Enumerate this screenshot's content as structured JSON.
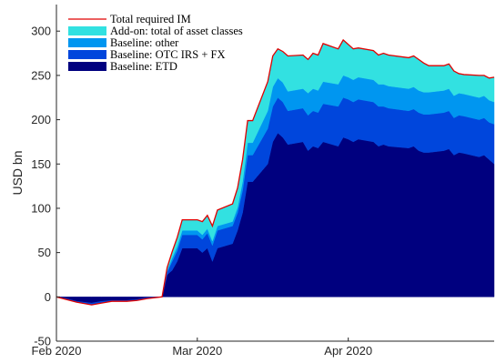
{
  "chart_data": {
    "type": "area",
    "title": "",
    "xlabel": "",
    "ylabel": "USD bn",
    "ylim": [
      -50,
      330
    ],
    "xlim": [
      "2020-02-03",
      "2020-04-30"
    ],
    "yticks": [
      -50,
      0,
      50,
      100,
      150,
      200,
      250,
      300
    ],
    "xticks": [
      {
        "date": "2020-02-03",
        "label": "Feb 2020"
      },
      {
        "date": "2020-03-02",
        "label": "Mar 2020"
      },
      {
        "date": "2020-04-01",
        "label": "Apr 2020"
      }
    ],
    "grid": false,
    "legend_position": "top-left",
    "x": [
      "2020-02-03",
      "2020-02-05",
      "2020-02-07",
      "2020-02-10",
      "2020-02-12",
      "2020-02-14",
      "2020-02-17",
      "2020-02-19",
      "2020-02-21",
      "2020-02-24",
      "2020-02-25",
      "2020-02-26",
      "2020-02-27",
      "2020-02-28",
      "2020-03-02",
      "2020-03-03",
      "2020-03-04",
      "2020-03-05",
      "2020-03-06",
      "2020-03-09",
      "2020-03-10",
      "2020-03-11",
      "2020-03-12",
      "2020-03-13",
      "2020-03-16",
      "2020-03-17",
      "2020-03-18",
      "2020-03-19",
      "2020-03-20",
      "2020-03-23",
      "2020-03-24",
      "2020-03-25",
      "2020-03-26",
      "2020-03-27",
      "2020-03-30",
      "2020-03-31",
      "2020-04-01",
      "2020-04-02",
      "2020-04-03",
      "2020-04-06",
      "2020-04-07",
      "2020-04-08",
      "2020-04-09",
      "2020-04-13",
      "2020-04-14",
      "2020-04-15",
      "2020-04-16",
      "2020-04-17",
      "2020-04-20",
      "2020-04-21",
      "2020-04-22",
      "2020-04-23",
      "2020-04-24",
      "2020-04-27",
      "2020-04-28",
      "2020-04-29",
      "2020-04-30"
    ],
    "series": [
      {
        "name": "Baseline: ETD",
        "color": "#00007f",
        "values": [
          0,
          -2,
          -5,
          -7,
          -5,
          -4,
          -4,
          -3,
          -1,
          0,
          25,
          30,
          40,
          55,
          55,
          50,
          55,
          40,
          55,
          60,
          75,
          95,
          130,
          130,
          150,
          175,
          185,
          180,
          172,
          175,
          165,
          170,
          168,
          175,
          170,
          180,
          178,
          175,
          178,
          175,
          170,
          172,
          170,
          168,
          170,
          165,
          163,
          163,
          165,
          167,
          160,
          163,
          162,
          158,
          160,
          155,
          150
        ]
      },
      {
        "name": "Baseline: OTC IRS + FX",
        "color": "#0046dc",
        "values": [
          0,
          -1,
          -1,
          -2,
          -2,
          -1,
          -1,
          -1,
          -1,
          0,
          3,
          10,
          12,
          15,
          15,
          15,
          17,
          18,
          20,
          20,
          20,
          25,
          30,
          30,
          40,
          40,
          40,
          40,
          38,
          38,
          40,
          40,
          40,
          43,
          45,
          45,
          45,
          45,
          45,
          45,
          45,
          43,
          43,
          42,
          42,
          43,
          43,
          43,
          43,
          43,
          42,
          42,
          42,
          42,
          42,
          42,
          45
        ]
      },
      {
        "name": "Baseline: other",
        "color": "#0096f0",
        "values": [
          0,
          0,
          0,
          0,
          0,
          0,
          0,
          0,
          0,
          0,
          2,
          4,
          5,
          5,
          5,
          5,
          5,
          5,
          5,
          5,
          6,
          10,
          14,
          14,
          20,
          22,
          22,
          22,
          22,
          22,
          25,
          25,
          25,
          25,
          25,
          25,
          25,
          25,
          25,
          25,
          25,
          25,
          25,
          25,
          25,
          25,
          25,
          25,
          25,
          25,
          25,
          25,
          25,
          25,
          25,
          25,
          25
        ]
      },
      {
        "name": "Add-on: total of asset classes",
        "color": "#32e1e1",
        "values": [
          0,
          0,
          0,
          0,
          0,
          0,
          0,
          0,
          0,
          0,
          3,
          7,
          10,
          12,
          12,
          15,
          15,
          17,
          18,
          20,
          22,
          25,
          25,
          25,
          33,
          35,
          33,
          35,
          40,
          38,
          38,
          40,
          40,
          43,
          40,
          40,
          37,
          35,
          33,
          33,
          33,
          35,
          35,
          35,
          35,
          35,
          33,
          30,
          28,
          28,
          28,
          22,
          22,
          25,
          23,
          25,
          28
        ]
      }
    ],
    "total": {
      "name": "Total required IM",
      "color": "#e00000",
      "values": [
        0,
        -3,
        -6,
        -9,
        -7,
        -5,
        -5,
        -4,
        -2,
        0,
        33,
        51,
        67,
        87,
        87,
        85,
        92,
        80,
        98,
        105,
        123,
        155,
        199,
        199,
        243,
        272,
        280,
        277,
        272,
        273,
        268,
        275,
        273,
        286,
        280,
        290,
        285,
        280,
        281,
        278,
        273,
        275,
        273,
        270,
        272,
        268,
        264,
        261,
        261,
        263,
        255,
        252,
        251,
        250,
        250,
        247,
        248
      ]
    }
  }
}
